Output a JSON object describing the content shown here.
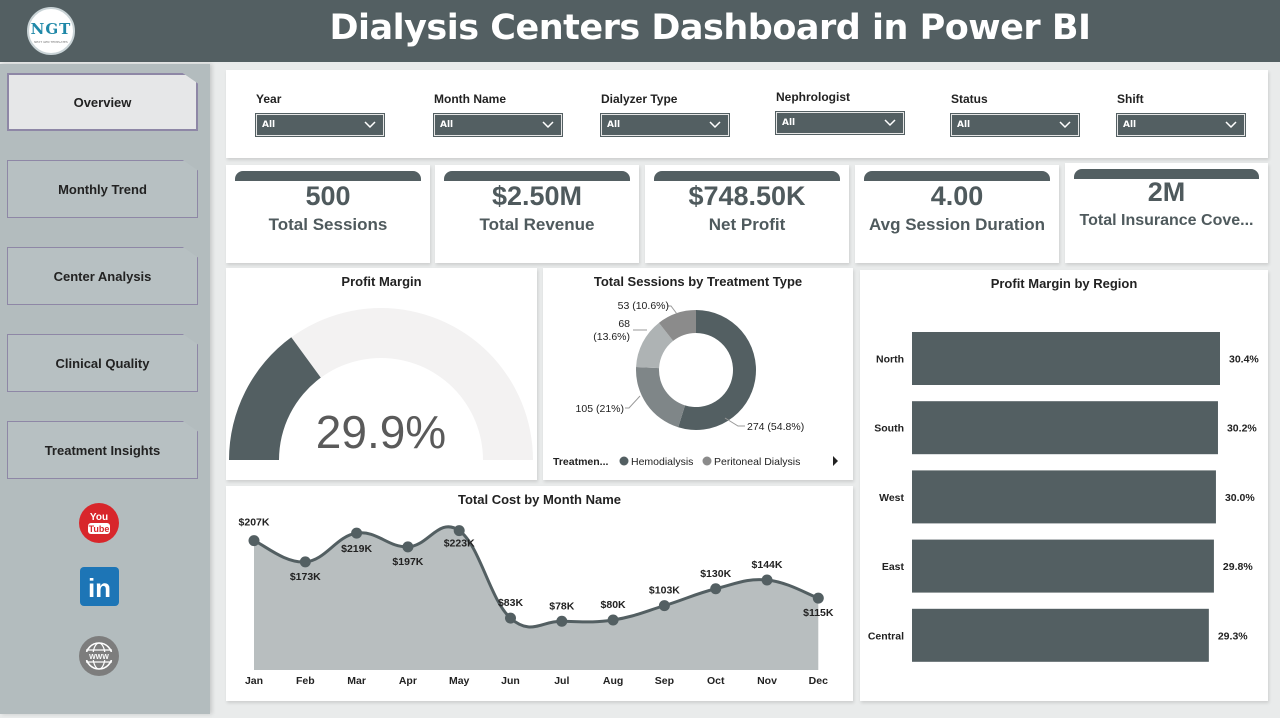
{
  "header": {
    "title": "Dialysis Centers Dashboard in Power BI",
    "logo_text": "NGT",
    "logo_sub": "NEXT GEN TEMPLATES"
  },
  "sidebar": {
    "items": [
      {
        "label": "Overview",
        "active": true
      },
      {
        "label": "Monthly Trend",
        "active": false
      },
      {
        "label": "Center Analysis",
        "active": false
      },
      {
        "label": "Clinical Quality",
        "active": false
      },
      {
        "label": "Treatment Insights",
        "active": false
      }
    ],
    "social": [
      {
        "icon": "youtube-icon",
        "text": "You Tube",
        "color": "#d8262b"
      },
      {
        "icon": "linkedin-icon",
        "text": "in",
        "color": "#1d75b6"
      },
      {
        "icon": "globe-icon",
        "text": "WWW",
        "color": "#7d7d7d"
      }
    ]
  },
  "filters": [
    {
      "label": "Year",
      "value": "All"
    },
    {
      "label": "Month Name",
      "value": "All"
    },
    {
      "label": "Dialyzer Type",
      "value": "All"
    },
    {
      "label": "Nephrologist",
      "value": "All"
    },
    {
      "label": "Status",
      "value": "All"
    },
    {
      "label": "Shift",
      "value": "All"
    }
  ],
  "kpis": [
    {
      "value": "500",
      "label": "Total Sessions"
    },
    {
      "value": "$2.50M",
      "label": "Total Revenue"
    },
    {
      "value": "$748.50K",
      "label": "Net Profit"
    },
    {
      "value": "4.00",
      "label": "Avg Session Duration"
    },
    {
      "value": "2M",
      "label": "Total Insurance Cove..."
    }
  ],
  "colors": {
    "accent": "#535f62",
    "light": "#a7aeaf",
    "track": "#f3f2f2",
    "area": "#b8bebf"
  },
  "chart_data": [
    {
      "type": "gauge",
      "title": "Profit Margin",
      "value": 29.9,
      "display": "29.9%",
      "min": 0,
      "max": 100
    },
    {
      "type": "donut",
      "title": "Total Sessions by Treatment Type",
      "legend_title": "Treatmen...",
      "legend": [
        "Hemodialysis",
        "Peritoneal Dialysis"
      ],
      "slices": [
        {
          "value": 274,
          "label": "274 (54.8%)",
          "color": "#535f62"
        },
        {
          "value": 105,
          "label": "105 (21%)",
          "color": "#7f8688"
        },
        {
          "value": 68,
          "label": "68 (13.6%)",
          "label_line1": "68",
          "label_line2": "(13.6%)",
          "color": "#aeb3b4"
        },
        {
          "value": 53,
          "label": "53 (10.6%)",
          "color": "#8b8b8b"
        }
      ]
    },
    {
      "type": "area",
      "title": "Total Cost by Month Name",
      "categories": [
        "Jan",
        "Feb",
        "Mar",
        "Apr",
        "May",
        "Jun",
        "Jul",
        "Aug",
        "Sep",
        "Oct",
        "Nov",
        "Dec"
      ],
      "values": [
        207,
        173,
        219,
        197,
        223,
        83,
        78,
        80,
        103,
        130,
        144,
        115
      ],
      "labels": [
        "$207K",
        "$173K",
        "$219K",
        "$197K",
        "$223K",
        "$83K",
        "$78K",
        "$80K",
        "$103K",
        "$130K",
        "$144K",
        "$115K"
      ],
      "ylim": [
        0,
        240
      ]
    },
    {
      "type": "bar",
      "orientation": "horizontal",
      "title": "Profit Margin by Region",
      "categories": [
        "North",
        "South",
        "West",
        "East",
        "Central"
      ],
      "values": [
        30.4,
        30.2,
        30.0,
        29.8,
        29.3
      ],
      "labels": [
        "30.4%",
        "30.2%",
        "30.0%",
        "29.8%",
        "29.3%"
      ]
    }
  ]
}
